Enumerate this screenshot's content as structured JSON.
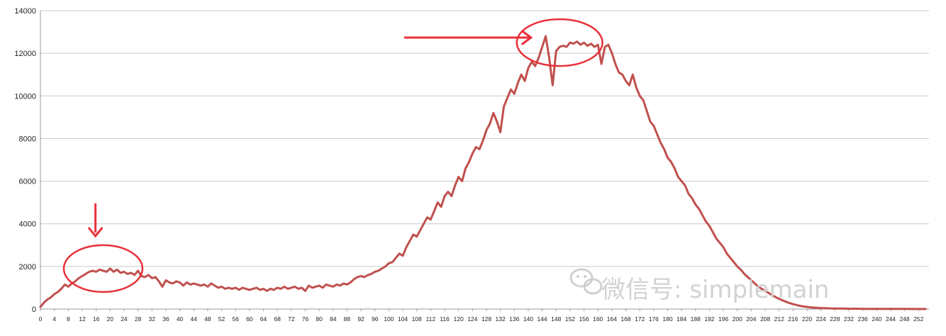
{
  "chart_data": {
    "type": "line",
    "title": "",
    "xlabel": "",
    "ylabel": "",
    "ylim": [
      0,
      14000
    ],
    "yticks": [
      0,
      2000,
      4000,
      6000,
      8000,
      10000,
      12000,
      14000
    ],
    "xticks": [
      "0",
      "4",
      "8",
      "12",
      "16",
      "20",
      "24",
      "28",
      "32",
      "36",
      "40",
      "44",
      "48",
      "52",
      "56",
      "60",
      "64",
      "68",
      "72",
      "76",
      "80",
      "84",
      "88",
      "92",
      "96",
      "100",
      "104",
      "108",
      "112",
      "116",
      "120",
      "124",
      "128",
      "132",
      "136",
      "140",
      "144",
      "148",
      "152",
      "156",
      "160",
      "164",
      "168",
      "172",
      "176",
      "180",
      "184",
      "188",
      "192",
      "196",
      "200",
      "204",
      "208",
      "212",
      "216",
      "220",
      "224",
      "228",
      "232",
      "236",
      "240",
      "244",
      "248",
      "252"
    ],
    "grid": true,
    "legend": "none",
    "color": "#c0504d",
    "series": [
      {
        "name": "",
        "points": [
          [
            0,
            100
          ],
          [
            1,
            300
          ],
          [
            2,
            450
          ],
          [
            3,
            550
          ],
          [
            4,
            700
          ],
          [
            5,
            800
          ],
          [
            6,
            950
          ],
          [
            7,
            1150
          ],
          [
            8,
            1050
          ],
          [
            9,
            1200
          ],
          [
            10,
            1300
          ],
          [
            11,
            1450
          ],
          [
            12,
            1550
          ],
          [
            13,
            1650
          ],
          [
            14,
            1750
          ],
          [
            15,
            1800
          ],
          [
            16,
            1750
          ],
          [
            17,
            1850
          ],
          [
            18,
            1800
          ],
          [
            19,
            1750
          ],
          [
            20,
            1900
          ],
          [
            21,
            1750
          ],
          [
            22,
            1850
          ],
          [
            23,
            1700
          ],
          [
            24,
            1750
          ],
          [
            25,
            1650
          ],
          [
            26,
            1700
          ],
          [
            27,
            1600
          ],
          [
            28,
            1800
          ],
          [
            29,
            1550
          ],
          [
            30,
            1500
          ],
          [
            31,
            1600
          ],
          [
            32,
            1450
          ],
          [
            33,
            1500
          ],
          [
            34,
            1300
          ],
          [
            35,
            1050
          ],
          [
            36,
            1350
          ],
          [
            37,
            1250
          ],
          [
            38,
            1200
          ],
          [
            39,
            1300
          ],
          [
            40,
            1250
          ],
          [
            41,
            1100
          ],
          [
            42,
            1250
          ],
          [
            43,
            1150
          ],
          [
            44,
            1200
          ],
          [
            45,
            1150
          ],
          [
            46,
            1100
          ],
          [
            47,
            1150
          ],
          [
            48,
            1050
          ],
          [
            49,
            1200
          ],
          [
            50,
            1100
          ],
          [
            51,
            1000
          ],
          [
            52,
            1050
          ],
          [
            53,
            950
          ],
          [
            54,
            1000
          ],
          [
            55,
            950
          ],
          [
            56,
            1000
          ],
          [
            57,
            900
          ],
          [
            58,
            1000
          ],
          [
            59,
            950
          ],
          [
            60,
            900
          ],
          [
            61,
            950
          ],
          [
            62,
            1000
          ],
          [
            63,
            900
          ],
          [
            64,
            950
          ],
          [
            65,
            850
          ],
          [
            66,
            950
          ],
          [
            67,
            900
          ],
          [
            68,
            1000
          ],
          [
            69,
            950
          ],
          [
            70,
            1050
          ],
          [
            71,
            950
          ],
          [
            72,
            1000
          ],
          [
            73,
            1050
          ],
          [
            74,
            950
          ],
          [
            75,
            1000
          ],
          [
            76,
            850
          ],
          [
            77,
            1100
          ],
          [
            78,
            1000
          ],
          [
            79,
            1050
          ],
          [
            80,
            1100
          ],
          [
            81,
            1000
          ],
          [
            82,
            1150
          ],
          [
            83,
            1100
          ],
          [
            84,
            1050
          ],
          [
            85,
            1150
          ],
          [
            86,
            1100
          ],
          [
            87,
            1200
          ],
          [
            88,
            1150
          ],
          [
            89,
            1250
          ],
          [
            90,
            1400
          ],
          [
            91,
            1500
          ],
          [
            92,
            1550
          ],
          [
            93,
            1500
          ],
          [
            94,
            1600
          ],
          [
            95,
            1650
          ],
          [
            96,
            1750
          ],
          [
            97,
            1800
          ],
          [
            98,
            1900
          ],
          [
            99,
            2000
          ],
          [
            100,
            2150
          ],
          [
            101,
            2200
          ],
          [
            102,
            2400
          ],
          [
            103,
            2600
          ],
          [
            104,
            2500
          ],
          [
            105,
            2900
          ],
          [
            106,
            3200
          ],
          [
            107,
            3500
          ],
          [
            108,
            3400
          ],
          [
            109,
            3700
          ],
          [
            110,
            4000
          ],
          [
            111,
            4300
          ],
          [
            112,
            4200
          ],
          [
            113,
            4600
          ],
          [
            114,
            5000
          ],
          [
            115,
            4800
          ],
          [
            116,
            5300
          ],
          [
            117,
            5500
          ],
          [
            118,
            5300
          ],
          [
            119,
            5800
          ],
          [
            120,
            6200
          ],
          [
            121,
            6000
          ],
          [
            122,
            6600
          ],
          [
            123,
            6900
          ],
          [
            124,
            7300
          ],
          [
            125,
            7600
          ],
          [
            126,
            7500
          ],
          [
            127,
            7900
          ],
          [
            128,
            8400
          ],
          [
            129,
            8700
          ],
          [
            130,
            9200
          ],
          [
            131,
            8800
          ],
          [
            132,
            8300
          ],
          [
            133,
            9500
          ],
          [
            134,
            9900
          ],
          [
            135,
            10300
          ],
          [
            136,
            10100
          ],
          [
            137,
            10600
          ],
          [
            138,
            11000
          ],
          [
            139,
            10700
          ],
          [
            140,
            11300
          ],
          [
            141,
            11600
          ],
          [
            142,
            11400
          ],
          [
            143,
            11800
          ],
          [
            144,
            12300
          ],
          [
            145,
            12800
          ],
          [
            146,
            11800
          ],
          [
            147,
            10500
          ],
          [
            148,
            12100
          ],
          [
            149,
            12300
          ],
          [
            150,
            12350
          ],
          [
            151,
            12300
          ],
          [
            152,
            12500
          ],
          [
            153,
            12450
          ],
          [
            154,
            12550
          ],
          [
            155,
            12400
          ],
          [
            156,
            12500
          ],
          [
            157,
            12350
          ],
          [
            158,
            12450
          ],
          [
            159,
            12300
          ],
          [
            160,
            12400
          ],
          [
            161,
            11500
          ],
          [
            162,
            12300
          ],
          [
            163,
            12400
          ],
          [
            164,
            12000
          ],
          [
            165,
            11500
          ],
          [
            166,
            11100
          ],
          [
            167,
            11000
          ],
          [
            168,
            10700
          ],
          [
            169,
            10500
          ],
          [
            170,
            11000
          ],
          [
            171,
            10400
          ],
          [
            172,
            10000
          ],
          [
            173,
            9800
          ],
          [
            174,
            9300
          ],
          [
            175,
            8800
          ],
          [
            176,
            8600
          ],
          [
            177,
            8200
          ],
          [
            178,
            7800
          ],
          [
            179,
            7500
          ],
          [
            180,
            7100
          ],
          [
            181,
            6900
          ],
          [
            182,
            6600
          ],
          [
            183,
            6200
          ],
          [
            184,
            6000
          ],
          [
            185,
            5800
          ],
          [
            186,
            5400
          ],
          [
            187,
            5200
          ],
          [
            188,
            4900
          ],
          [
            189,
            4700
          ],
          [
            190,
            4400
          ],
          [
            191,
            4100
          ],
          [
            192,
            3900
          ],
          [
            193,
            3600
          ],
          [
            194,
            3300
          ],
          [
            195,
            3100
          ],
          [
            196,
            2900
          ],
          [
            197,
            2600
          ],
          [
            198,
            2400
          ],
          [
            199,
            2200
          ],
          [
            200,
            2000
          ],
          [
            201,
            1850
          ],
          [
            202,
            1650
          ],
          [
            203,
            1500
          ],
          [
            204,
            1350
          ],
          [
            205,
            1200
          ],
          [
            206,
            1050
          ],
          [
            207,
            950
          ],
          [
            208,
            850
          ],
          [
            209,
            750
          ],
          [
            210,
            650
          ],
          [
            211,
            560
          ],
          [
            212,
            480
          ],
          [
            213,
            410
          ],
          [
            214,
            340
          ],
          [
            215,
            280
          ],
          [
            216,
            230
          ],
          [
            217,
            190
          ],
          [
            218,
            150
          ],
          [
            219,
            120
          ],
          [
            220,
            100
          ],
          [
            221,
            80
          ],
          [
            222,
            65
          ],
          [
            223,
            55
          ],
          [
            224,
            45
          ],
          [
            225,
            40
          ],
          [
            226,
            35
          ],
          [
            227,
            30
          ],
          [
            228,
            28
          ],
          [
            229,
            25
          ],
          [
            230,
            22
          ],
          [
            231,
            20
          ],
          [
            232,
            18
          ],
          [
            233,
            16
          ],
          [
            234,
            15
          ],
          [
            235,
            14
          ],
          [
            236,
            12
          ],
          [
            237,
            11
          ],
          [
            238,
            10
          ],
          [
            239,
            10
          ],
          [
            240,
            9
          ],
          [
            241,
            8
          ],
          [
            242,
            8
          ],
          [
            243,
            7
          ],
          [
            244,
            7
          ],
          [
            245,
            6
          ],
          [
            246,
            6
          ],
          [
            247,
            5
          ],
          [
            248,
            5
          ],
          [
            249,
            5
          ],
          [
            250,
            4
          ],
          [
            251,
            4
          ],
          [
            252,
            4
          ],
          [
            253,
            3
          ],
          [
            254,
            3
          ]
        ]
      }
    ],
    "annotations": [
      {
        "type": "circle",
        "color": "#e8303a",
        "around_x": [
          12,
          24
        ],
        "around_y": [
          1900,
          1900
        ]
      },
      {
        "type": "arrow",
        "direction": "down",
        "color": "#e8303a",
        "points_to_x": 16
      },
      {
        "type": "circle",
        "color": "#e8303a",
        "around_x": [
          142,
          156
        ],
        "around_y": [
          12500,
          12500
        ]
      },
      {
        "type": "arrow",
        "direction": "right",
        "color": "#e8303a",
        "points_to_x": 142
      }
    ]
  },
  "watermark": {
    "icon": "wechat-icon",
    "text": "微信号: simplemain"
  }
}
